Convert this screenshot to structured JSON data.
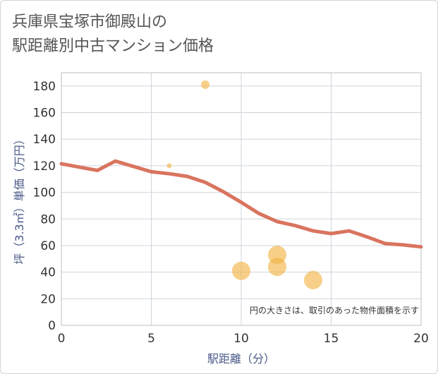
{
  "title_line1": "兵庫県宝塚市御殿山の",
  "title_line2": "駅距離別中古マンション価格",
  "chart_data": {
    "type": "scatter+line",
    "xlabel": "駅距離（分）",
    "ylabel": "坪（3.3㎡）単価（万円）",
    "xlim": [
      0,
      20
    ],
    "ylim": [
      0,
      190
    ],
    "xticks": [
      0,
      5,
      10,
      15,
      20
    ],
    "yticks": [
      0,
      20,
      40,
      60,
      80,
      100,
      120,
      140,
      160,
      180
    ],
    "note": "円の大きさは、取引のあった物件面積を示す",
    "line": {
      "x": [
        0,
        1,
        2,
        3,
        4,
        5,
        6,
        7,
        8,
        9,
        10,
        11,
        12,
        13,
        14,
        15,
        16,
        17,
        18,
        19,
        20
      ],
      "y": [
        121.5,
        119,
        116.5,
        123.5,
        119.5,
        115.5,
        114,
        112,
        107.5,
        100.5,
        92.5,
        84,
        78,
        75,
        71,
        69,
        71,
        66.5,
        61.5,
        60.5,
        59
      ],
      "color": "#d9745f"
    },
    "bubbles": [
      {
        "x": 8,
        "y": 181,
        "r": 6
      },
      {
        "x": 6,
        "y": 120,
        "r": 3.5
      },
      {
        "x": 10,
        "y": 41,
        "r": 13
      },
      {
        "x": 12,
        "y": 53,
        "r": 13
      },
      {
        "x": 12,
        "y": 44,
        "r": 13
      },
      {
        "x": 14,
        "y": 34,
        "r": 13
      }
    ],
    "bubble_color": "#f2b54a"
  }
}
